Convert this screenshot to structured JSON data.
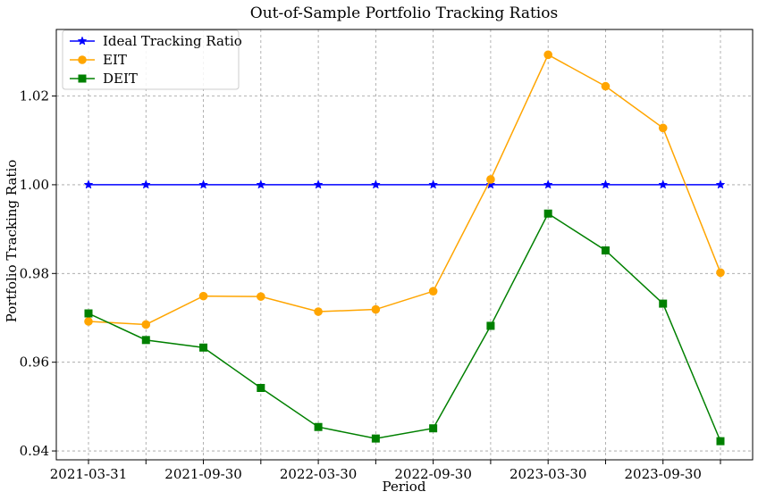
{
  "chart_data": {
    "type": "line",
    "title": "Out-of-Sample Portfolio Tracking Ratios",
    "xlabel": "Period",
    "ylabel": "Portfolio Tracking Ratio",
    "ylim": [
      0.938,
      1.035
    ],
    "yticks": [
      0.94,
      0.96,
      0.98,
      1.0,
      1.02
    ],
    "ytick_labels": [
      "0.94",
      "0.96",
      "0.98",
      "1.00",
      "1.02"
    ],
    "x": [
      "2021-03-31",
      "2021-06-30",
      "2021-09-30",
      "2021-12-31",
      "2022-03-30",
      "2022-06-30",
      "2022-09-30",
      "2022-12-31",
      "2023-03-30",
      "2023-06-30",
      "2023-09-30",
      "2023-12-31"
    ],
    "xtick_labels": [
      "2021-03-31",
      "",
      "2021-09-30",
      "",
      "2022-03-30",
      "",
      "2022-09-30",
      "",
      "2023-03-30",
      "",
      "2023-09-30",
      ""
    ],
    "grid": true,
    "legend_position": "top-left",
    "series": [
      {
        "name": "Ideal Tracking Ratio",
        "color": "#0000ff",
        "marker": "star",
        "values": [
          1.0,
          1.0,
          1.0,
          1.0,
          1.0,
          1.0,
          1.0,
          1.0,
          1.0,
          1.0,
          1.0,
          1.0
        ]
      },
      {
        "name": "EIT",
        "color": "#ffa500",
        "marker": "circle",
        "values": [
          0.9692,
          0.9685,
          0.9749,
          0.9748,
          0.9714,
          0.9719,
          0.976,
          1.0012,
          1.0293,
          1.0222,
          1.0128,
          0.9802
        ]
      },
      {
        "name": "DEIT",
        "color": "#008000",
        "marker": "square",
        "values": [
          0.971,
          0.965,
          0.9633,
          0.9542,
          0.9454,
          0.9428,
          0.9451,
          0.9682,
          0.9935,
          0.9852,
          0.9732,
          0.9422
        ]
      }
    ]
  }
}
